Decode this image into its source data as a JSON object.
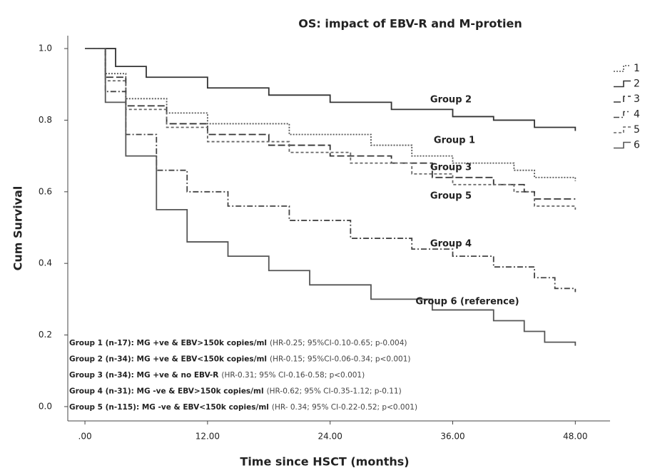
{
  "chart_data": {
    "type": "step",
    "title": "OS: impact of EBV-R and M-protien",
    "xlabel": "Time since HSCT (months)",
    "ylabel": "Cum Survival",
    "xlim": [
      -1.68,
      51.4
    ],
    "ylim": [
      -0.04,
      1.036
    ],
    "xticks": [
      {
        "value": 0,
        "label": ".00"
      },
      {
        "value": 12,
        "label": "12.00"
      },
      {
        "value": 24,
        "label": "24.00"
      },
      {
        "value": 36,
        "label": "36.00"
      },
      {
        "value": 48,
        "label": "48.00"
      }
    ],
    "yticks": [
      {
        "value": 0,
        "label": "0.0"
      },
      0.2,
      0.4,
      0.6,
      0.8,
      {
        "value": 1,
        "label": "1.0"
      }
    ],
    "series": [
      {
        "name": "1",
        "color": "#555555",
        "dash": "2 2",
        "x": [
          0,
          2,
          4,
          8,
          12,
          20,
          28,
          32,
          36,
          42,
          44,
          48
        ],
        "values": [
          1.0,
          0.93,
          0.86,
          0.82,
          0.79,
          0.76,
          0.73,
          0.7,
          0.68,
          0.66,
          0.64,
          0.63
        ]
      },
      {
        "name": "2",
        "color": "#333333",
        "dash": "none",
        "x": [
          0,
          3,
          6,
          12,
          18,
          24,
          30,
          36,
          40,
          44,
          48
        ],
        "values": [
          1.0,
          0.95,
          0.92,
          0.89,
          0.87,
          0.85,
          0.83,
          0.81,
          0.8,
          0.78,
          0.77
        ]
      },
      {
        "name": "3",
        "color": "#333333",
        "dash": "10 4",
        "x": [
          0,
          2,
          4,
          8,
          12,
          18,
          24,
          30,
          34,
          40,
          43,
          44,
          48
        ],
        "values": [
          1.0,
          0.92,
          0.84,
          0.79,
          0.76,
          0.73,
          0.7,
          0.68,
          0.64,
          0.62,
          0.6,
          0.58,
          0.58
        ]
      },
      {
        "name": "4",
        "color": "#444444",
        "dash": "8 3 2 3",
        "x": [
          0,
          2,
          4,
          7,
          10,
          14,
          20,
          26,
          32,
          36,
          40,
          44,
          46,
          48
        ],
        "values": [
          1.0,
          0.88,
          0.76,
          0.66,
          0.6,
          0.56,
          0.52,
          0.47,
          0.44,
          0.42,
          0.39,
          0.36,
          0.33,
          0.32
        ]
      },
      {
        "name": "5",
        "color": "#666666",
        "dash": "4 3",
        "x": [
          0,
          2,
          4,
          8,
          12,
          20,
          26,
          32,
          36,
          42,
          44,
          48
        ],
        "values": [
          1.0,
          0.91,
          0.83,
          0.78,
          0.74,
          0.71,
          0.68,
          0.65,
          0.62,
          0.6,
          0.56,
          0.55
        ]
      },
      {
        "name": "6",
        "color": "#555555",
        "dash": "none",
        "x": [
          0,
          2,
          4,
          7,
          10,
          14,
          18,
          22,
          28,
          34,
          40,
          43,
          45,
          48
        ],
        "values": [
          1.0,
          0.85,
          0.7,
          0.55,
          0.46,
          0.42,
          0.38,
          0.34,
          0.3,
          0.27,
          0.24,
          0.21,
          0.18,
          0.17
        ]
      }
    ],
    "annotations": [
      "Group 2",
      "Group 1",
      "Group 3",
      "Group 5",
      "Group 4",
      "Group 6 (reference)"
    ],
    "notes": [
      {
        "label": "Group 1 (n-17): MG +ve & EBV>150k copies/ml",
        "detail": "(HR-0.25; 95%CI-0.10-0.65; p-0.004)"
      },
      {
        "label": "Group 2 (n-34): MG +ve & EBV<150k copies/ml",
        "detail": "(HR-0.15; 95%CI-0.06-0.34; p<0.001)"
      },
      {
        "label": "Group 3 (n-34): MG +ve & no EBV-R",
        "detail": "(HR-0.31; 95% CI-0.16-0.58; p<0.001)"
      },
      {
        "label": "Group 4 (n-31): MG -ve & EBV>150k copies/ml",
        "detail": "(HR-0.62; 95% CI-0.35-1.12; p-0.11)"
      },
      {
        "label": "Group 5 (n-115): MG -ve & EBV<150k copies/ml",
        "detail": "(HR- 0.34; 95% CI-0.22-0.52; p<0.001)"
      }
    ],
    "legend": "right"
  }
}
